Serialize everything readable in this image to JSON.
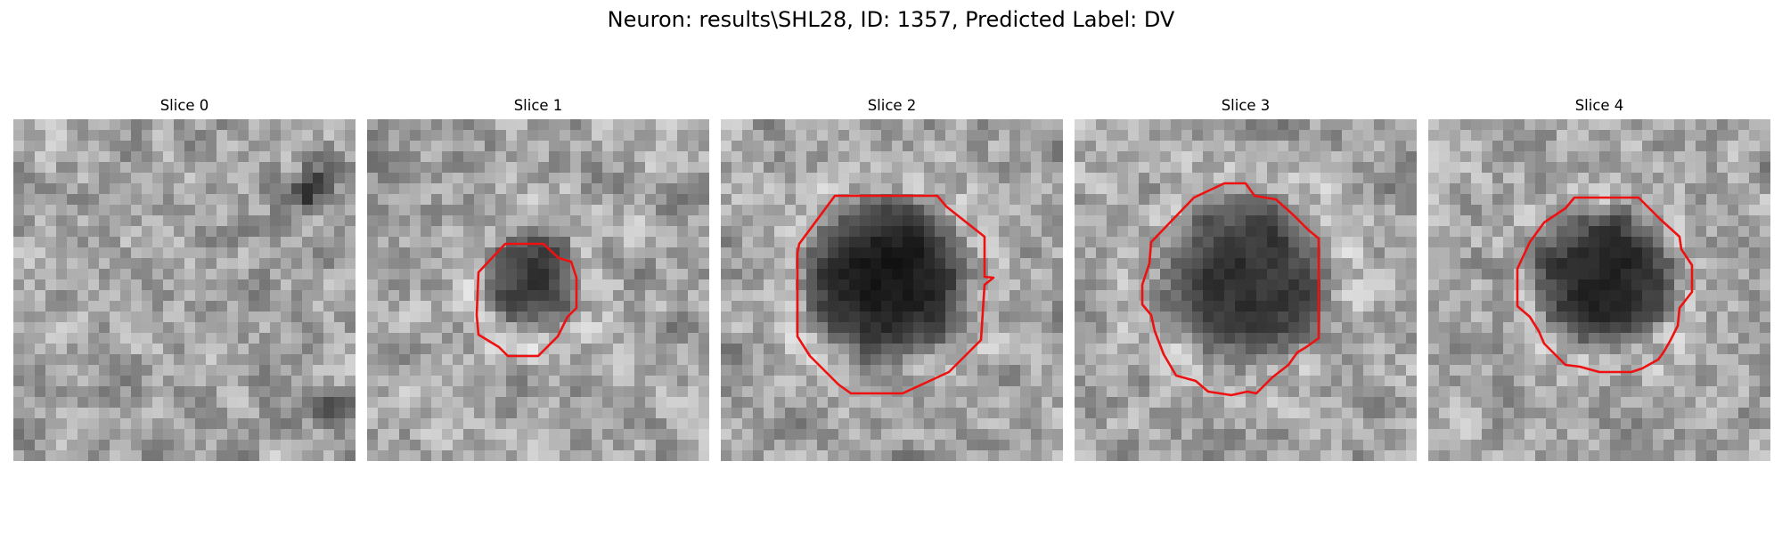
{
  "figure": {
    "title": "Neuron: results\\SHL28, ID: 1357, Predicted Label: DV"
  },
  "panels": [
    {
      "title": "Slice 0",
      "has_contour": false
    },
    {
      "title": "Slice 1",
      "has_contour": true
    },
    {
      "title": "Slice 2",
      "has_contour": true
    },
    {
      "title": "Slice 3",
      "has_contour": true
    },
    {
      "title": "Slice 4",
      "has_contour": true
    }
  ],
  "colors": {
    "contour": "#ee1111",
    "background": "#ffffff"
  }
}
